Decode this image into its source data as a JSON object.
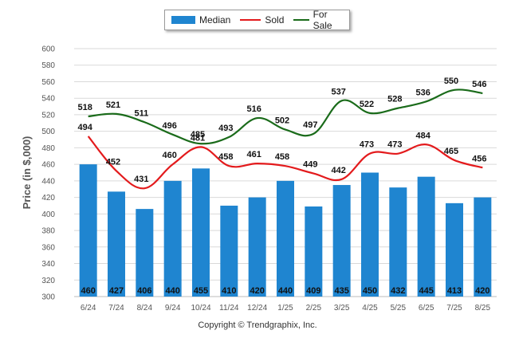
{
  "legend": {
    "median": "Median",
    "sold": "Sold",
    "for_sale": "For Sale"
  },
  "copyright": "Copyright © Trendgraphix, Inc.",
  "colors": {
    "median": "#1f85d0",
    "sold": "#e31a1c",
    "for_sale": "#1a6b1a",
    "grid": "#d9d9d9"
  },
  "chart_data": {
    "type": "bar",
    "categories": [
      "6/24",
      "7/24",
      "8/24",
      "9/24",
      "10/24",
      "11/24",
      "12/24",
      "1/25",
      "2/25",
      "3/25",
      "4/25",
      "5/25",
      "6/25",
      "7/25",
      "8/25"
    ],
    "series": [
      {
        "name": "Median",
        "type": "bar",
        "values": [
          460,
          427,
          406,
          440,
          455,
          410,
          420,
          440,
          409,
          435,
          450,
          432,
          445,
          413,
          420
        ]
      },
      {
        "name": "Sold",
        "type": "line",
        "values": [
          494,
          452,
          431,
          460,
          481,
          458,
          461,
          458,
          449,
          442,
          473,
          473,
          484,
          465,
          456
        ]
      },
      {
        "name": "For Sale",
        "type": "line",
        "values": [
          518,
          521,
          511,
          496,
          485,
          493,
          516,
          502,
          497,
          537,
          522,
          528,
          536,
          550,
          546
        ]
      }
    ],
    "ylabel": "Price (in $,000)",
    "ylim": [
      300,
      600
    ],
    "yticks": [
      300,
      320,
      340,
      360,
      380,
      400,
      420,
      440,
      460,
      480,
      500,
      520,
      540,
      560,
      580,
      600
    ],
    "grid": true,
    "legend_position": "top-center"
  }
}
